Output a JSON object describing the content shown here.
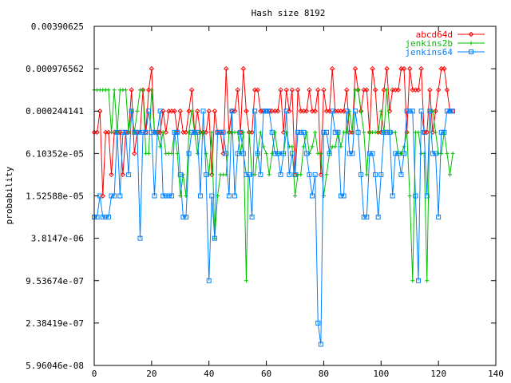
{
  "chart_data": {
    "type": "line",
    "title": "Hash size 8192",
    "xlabel": "",
    "ylabel": "probability",
    "xlim": [
      0,
      140
    ],
    "x_ticks": [
      0,
      20,
      40,
      60,
      80,
      100,
      120,
      140
    ],
    "y_scale": "log2",
    "ylim": [
      5.96046e-08,
      0.00390625
    ],
    "y_ticks": [
      {
        "value": 0.00390625,
        "label": "0.00390625"
      },
      {
        "value": 0.000976562,
        "label": "0.000976562"
      },
      {
        "value": 0.000244141,
        "label": "0.000244141"
      },
      {
        "value": 6.10352e-05,
        "label": "6.10352e-05"
      },
      {
        "value": 1.52588e-05,
        "label": "1.52588e-05"
      },
      {
        "value": 3.8147e-06,
        "label": "3.8147e-06"
      },
      {
        "value": 9.53674e-07,
        "label": "9.53674e-07"
      },
      {
        "value": 2.38419e-07,
        "label": "2.38419e-07"
      },
      {
        "value": 5.96046e-08,
        "label": "5.96046e-08"
      }
    ],
    "grid": false,
    "legend_position": "top-right",
    "x": [
      0,
      1,
      2,
      3,
      4,
      5,
      6,
      7,
      8,
      9,
      10,
      11,
      12,
      13,
      14,
      15,
      16,
      17,
      18,
      19,
      20,
      21,
      22,
      23,
      24,
      25,
      26,
      27,
      28,
      29,
      30,
      31,
      32,
      33,
      34,
      35,
      36,
      37,
      38,
      39,
      40,
      41,
      42,
      43,
      44,
      45,
      46,
      47,
      48,
      49,
      50,
      51,
      52,
      53,
      54,
      55,
      56,
      57,
      58,
      59,
      60,
      61,
      62,
      63,
      64,
      65,
      66,
      67,
      68,
      69,
      70,
      71,
      72,
      73,
      74,
      75,
      76,
      77,
      78,
      79,
      80,
      81,
      82,
      83,
      84,
      85,
      86,
      87,
      88,
      89,
      90,
      91,
      92,
      93,
      94,
      95,
      96,
      97,
      98,
      99,
      100,
      101,
      102,
      103,
      104,
      105,
      106,
      107,
      108,
      109,
      110,
      111,
      112,
      113,
      114,
      115,
      116,
      117,
      118,
      119,
      120,
      121,
      122,
      123,
      124,
      125
    ],
    "series": [
      {
        "name": "abcd64d",
        "color": "#ff0000",
        "marker": "diamond",
        "values": [
          0.0001220703,
          0.0001220703,
          0.0002441406,
          1.525879e-05,
          0.0001220703,
          0.0001220703,
          3.051758e-05,
          0.0001220703,
          0.0001220703,
          0.0001220703,
          3.051758e-05,
          0.0001220703,
          0.0001220703,
          0.0004882812,
          6.103516e-05,
          0.0001220703,
          0.0001220703,
          0.0004882812,
          0.0001220703,
          0.0004882812,
          0.0009765625,
          0.0001220703,
          0.0001220703,
          0.0001220703,
          0.0002441406,
          0.0001220703,
          0.0002441406,
          0.0002441406,
          0.0002441406,
          0.0001220703,
          0.0002441406,
          0.0001220703,
          0.0001220703,
          0.0002441406,
          0.0004882812,
          0.0001220703,
          0.0002441406,
          0.0001220703,
          0.0001220703,
          0.0001220703,
          0.0002441406,
          3.051758e-05,
          0.0002441406,
          0.0001220703,
          0.0001220703,
          6.103516e-05,
          0.0009765625,
          0.0001220703,
          0.0002441406,
          0.0002441406,
          0.0004882812,
          0.0001220703,
          0.0009765625,
          0.0002441406,
          0.0001220703,
          0.0001220703,
          0.0004882812,
          0.0004882812,
          0.0002441406,
          0.0002441406,
          0.0002441406,
          0.0002441406,
          0.0002441406,
          0.0002441406,
          0.0002441406,
          0.0004882812,
          0.0001220703,
          0.0004882812,
          0.0002441406,
          0.0004882812,
          3.051758e-05,
          0.0004882812,
          0.0002441406,
          0.0002441406,
          0.0002441406,
          0.0004882812,
          0.0002441406,
          0.0002441406,
          0.0004882812,
          3.051758e-05,
          0.0004882812,
          0.0002441406,
          0.0002441406,
          0.0009765625,
          0.0002441406,
          0.0002441406,
          0.0002441406,
          0.0002441406,
          0.0004882812,
          0.0001220703,
          0.0001220703,
          0.0009765625,
          0.0004882812,
          0.0002441406,
          0.0004882812,
          0.0004882812,
          0.0001220703,
          0.0009765625,
          0.0004882812,
          0.0001220703,
          0.0001220703,
          0.0004882812,
          0.0009765625,
          0.0002441406,
          0.0004882812,
          0.0004882812,
          0.0004882812,
          0.0009765625,
          0.0009765625,
          0.0001220703,
          0.0009765625,
          0.0004882812,
          0.0004882812,
          0.0004882812,
          0.0009765625,
          0.0001220703,
          0.0001220703,
          0.0004882812,
          0.0001220703,
          0.0002441406,
          0.0004882812,
          0.0009765625,
          0.0009765625,
          0.0004882812,
          0.0002441406,
          0.0002441406
        ]
      },
      {
        "name": "jenkins2b",
        "color": "#00c000",
        "marker": "plus",
        "values": [
          0.0004882812,
          0.0004882812,
          0.0004882812,
          0.0004882812,
          0.0004882812,
          0.0004882812,
          0.0001220703,
          0.0004882812,
          0.0001220703,
          0.0004882812,
          0.0004882812,
          0.0004882812,
          0.0001220703,
          0.0002441406,
          0.0001220703,
          0.0002441406,
          0.0004882812,
          0.0004882812,
          6.103516e-05,
          6.103516e-05,
          0.0004882812,
          0.0001220703,
          0.0001220703,
          7.629395e-05,
          0.0001220703,
          6.103516e-05,
          6.103516e-05,
          6.103516e-05,
          0.0001220703,
          6.103516e-05,
          1.525879e-05,
          3.051758e-05,
          1.525879e-05,
          0.0001220703,
          0.0002441406,
          0.0001220703,
          6.103516e-05,
          0.0001220703,
          0.0001220703,
          6.103516e-05,
          3.051758e-05,
          0.0001220703,
          3.814697e-06,
          1.525879e-05,
          3.051758e-05,
          3.051758e-05,
          3.051758e-05,
          0.0001220703,
          0.0001220703,
          0.0001220703,
          0.0001220703,
          6.103516e-05,
          0.0001220703,
          9.536743e-07,
          0.0001220703,
          3.051758e-05,
          3.051758e-05,
          6.103516e-05,
          0.0001220703,
          7.629395e-05,
          6.103516e-05,
          3.051758e-05,
          6.103516e-05,
          0.0001220703,
          6.103516e-05,
          6.103516e-05,
          6.103516e-05,
          0.0001220703,
          7.629395e-05,
          7.629395e-05,
          1.525879e-05,
          3.051758e-05,
          3.051758e-05,
          7.629395e-05,
          0.0001220703,
          6.103516e-05,
          7.629395e-05,
          0.0001220703,
          6.103516e-05,
          6.103516e-05,
          1.525879e-05,
          3.051758e-05,
          6.103516e-05,
          7.629395e-05,
          7.629395e-05,
          0.0001220703,
          7.629395e-05,
          0.0001220703,
          0.0001220703,
          0.0002441406,
          0.0001220703,
          0.0004882812,
          0.0004882812,
          0.0002441406,
          0.0001220703,
          3.051758e-05,
          0.0001220703,
          0.0001220703,
          0.0001220703,
          0.0001220703,
          0.0002441406,
          0.0001220703,
          0.0004882812,
          0.0001220703,
          0.0001220703,
          0.0001220703,
          6.103516e-05,
          6.103516e-05,
          7.629395e-05,
          0.0001220703,
          1.525879e-05,
          9.536743e-07,
          0.0001220703,
          0.0001220703,
          6.103516e-05,
          6.103516e-05,
          9.536743e-07,
          0.0002441406,
          0.0002441406,
          0.0001220703,
          6.103516e-05,
          6.103516e-05,
          0.0001220703,
          6.103516e-05,
          3.051758e-05,
          6.103516e-05
        ]
      },
      {
        "name": "jenkins64",
        "color": "#0080ff",
        "marker": "square",
        "values": [
          7.62939e-06,
          7.62939e-06,
          1.525879e-05,
          7.62939e-06,
          7.62939e-06,
          7.62939e-06,
          1.525879e-05,
          1.525879e-05,
          0.0001220703,
          1.525879e-05,
          0.0001220703,
          0.0001220703,
          3.051758e-05,
          0.0002441406,
          0.0001220703,
          0.0001220703,
          3.814697e-06,
          0.0001220703,
          0.0001220703,
          0.0002441406,
          0.0001220703,
          1.525879e-05,
          0.0001220703,
          0.0002441406,
          1.525879e-05,
          1.525879e-05,
          1.525879e-05,
          1.525879e-05,
          0.0001220703,
          0.0001220703,
          3.051758e-05,
          7.62939e-06,
          7.62939e-06,
          6.103516e-05,
          0.0001220703,
          0.0001220703,
          0.0001220703,
          1.525879e-05,
          0.0002441406,
          3.051758e-05,
          9.536743e-07,
          1.525879e-05,
          3.814697e-06,
          0.0001220703,
          0.0001220703,
          0.0001220703,
          6.103516e-05,
          1.525879e-05,
          0.0002441406,
          1.525879e-05,
          6.103516e-05,
          0.0001220703,
          6.103516e-05,
          3.051758e-05,
          3.051758e-05,
          7.62939e-06,
          0.0002441406,
          6.103516e-05,
          3.051758e-05,
          0.0002441406,
          0.0002441406,
          0.0002441406,
          0.0001220703,
          6.103516e-05,
          6.103516e-05,
          3.051758e-05,
          6.103516e-05,
          0.0002441406,
          3.051758e-05,
          6.103516e-05,
          3.051758e-05,
          0.0001220703,
          0.0001220703,
          0.0001220703,
          6.103516e-05,
          3.051758e-05,
          1.525879e-05,
          3.051758e-05,
          2.384186e-07,
          1.192093e-07,
          0.0001220703,
          0.0001220703,
          6.103516e-05,
          0.0002441406,
          0.0001220703,
          0.0001220703,
          1.525879e-05,
          1.525879e-05,
          0.0002441406,
          6.103516e-05,
          6.103516e-05,
          0.0002441406,
          0.0001220703,
          3.051758e-05,
          7.62939e-06,
          7.62939e-06,
          6.103516e-05,
          6.103516e-05,
          3.051758e-05,
          7.62939e-06,
          3.051758e-05,
          0.0001220703,
          0.0001220703,
          0.0001220703,
          1.525879e-05,
          6.103516e-05,
          6.103516e-05,
          3.051758e-05,
          6.103516e-05,
          0.0002441406,
          0.0002441406,
          0.0002441406,
          1.525879e-05,
          9.536743e-07,
          0.0002441406,
          0.0001220703,
          1.525879e-05,
          0.0002441406,
          6.103516e-05,
          6.103516e-05,
          7.62939e-06,
          0.0001220703,
          0.0001220703,
          0.0002441406,
          0.0002441406,
          0.0002441406
        ]
      }
    ]
  }
}
